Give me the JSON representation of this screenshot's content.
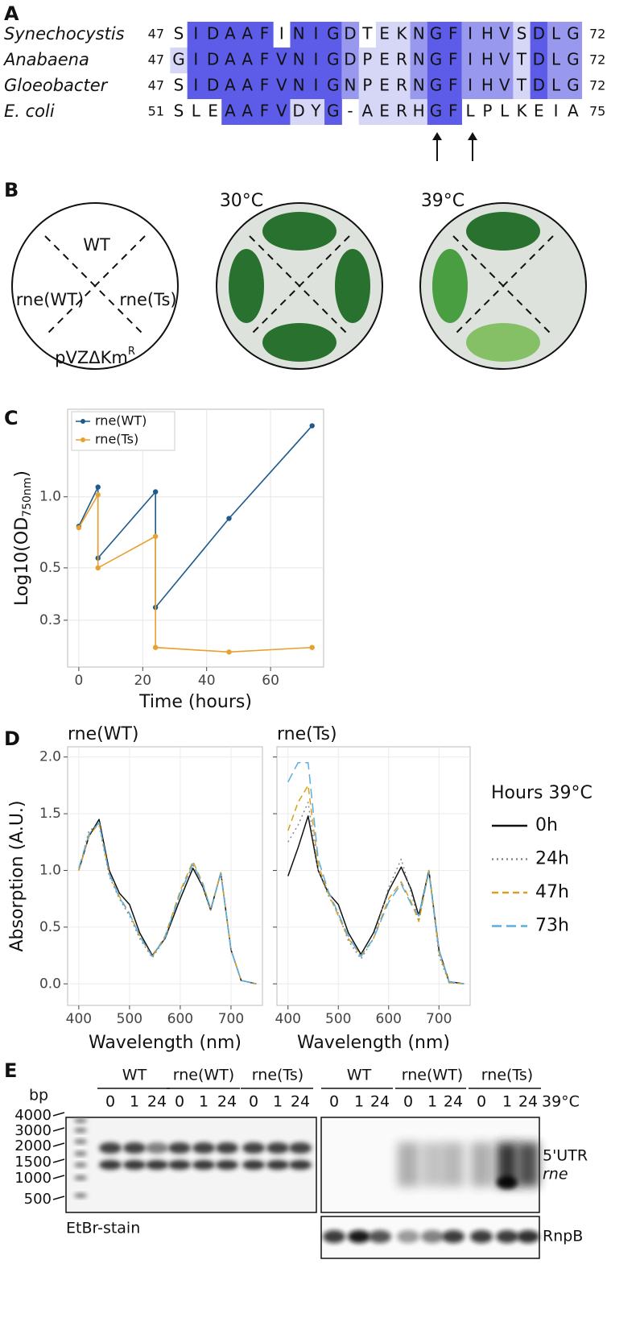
{
  "panel_labels": [
    "A",
    "B",
    "C",
    "D",
    "E"
  ],
  "alignment": {
    "rows": [
      {
        "name": "Synechocystis",
        "start": 47,
        "sequence": "SIDAAFINIGDTEKNGFIHVSDLG",
        "end": 72
      },
      {
        "name": "Anabaena",
        "start": 47,
        "sequence": "GIDAAFVNIGDPERNGFIHVTDLG",
        "end": 72
      },
      {
        "name": "Gloeobacter",
        "start": 47,
        "sequence": "SIDAAFVNIGNPERNGFIHVTDLG",
        "end": 72
      },
      {
        "name": "E. coli",
        "start": 51,
        "sequence": "SLEAAFVDYG-AERHGFLPLKEIA",
        "end": 75
      }
    ]
  },
  "plates": {
    "key": {
      "top": "WT",
      "left": "rne(WT)",
      "right": "rne(Ts)",
      "bottom": "pVZΔKm",
      "bottom_sup": "R"
    },
    "temperatures": [
      "30°C",
      "39°C"
    ]
  },
  "chart_data": [
    {
      "type": "line",
      "x_label": "Time (hours)",
      "y_label": "Log10(OD",
      "y_label_sub": "750nm",
      "y_label_end": ")",
      "log_y": true,
      "grid": true,
      "x": [
        0,
        6,
        6,
        24,
        24,
        47,
        73
      ],
      "series": [
        {
          "name": "rne(WT)",
          "color": "#1f5a8c",
          "values": [
            0.75,
            1.1,
            0.55,
            1.05,
            0.34,
            0.81,
            2.0
          ]
        },
        {
          "name": "rne(Ts)",
          "color": "#e8a030",
          "values": [
            0.74,
            1.02,
            0.5,
            0.68,
            0.23,
            0.22,
            0.23
          ]
        }
      ],
      "xlim": [
        -3.5,
        76.6
      ],
      "xticks": [
        0,
        20,
        40,
        60
      ],
      "ylim": [
        0.19,
        2.35
      ],
      "yticks": [
        0.3,
        0.5,
        {
          "value": 1,
          "label": "1.0"
        }
      ]
    },
    {
      "type": "line",
      "facets": [
        "rne(WT)",
        "rne(Ts)"
      ],
      "x_label": "Wavelength (nm)",
      "y_label": "Absorption (A.U.)",
      "legend_title": "Hours 39°C",
      "grid": true,
      "x": [
        400,
        420,
        440,
        460,
        480,
        500,
        520,
        545,
        570,
        600,
        625,
        645,
        660,
        680,
        700,
        720,
        750
      ],
      "series": [
        {
          "name": "0h",
          "color": "#111111",
          "dash": "solid",
          "values": [
            [
              1.0,
              1.3,
              1.45,
              1.0,
              0.8,
              0.7,
              0.45,
              0.25,
              0.4,
              0.75,
              1.02,
              0.85,
              0.65,
              0.98,
              0.3,
              0.03,
              0.0
            ],
            [
              0.95,
              1.2,
              1.48,
              1.0,
              0.8,
              0.7,
              0.45,
              0.26,
              0.45,
              0.82,
              1.03,
              0.83,
              0.6,
              1.0,
              0.3,
              0.02,
              0.0
            ]
          ]
        },
        {
          "name": "24h",
          "color": "#888888",
          "dash": "dotted",
          "values": [
            [
              1.0,
              1.35,
              1.4,
              0.95,
              0.75,
              0.6,
              0.4,
              0.23,
              0.4,
              0.8,
              1.05,
              0.86,
              0.65,
              0.98,
              0.3,
              0.03,
              0.0
            ],
            [
              1.25,
              1.4,
              1.6,
              1.0,
              0.78,
              0.62,
              0.38,
              0.22,
              0.4,
              0.85,
              1.1,
              0.8,
              0.55,
              1.0,
              0.25,
              0.01,
              0.0
            ]
          ]
        },
        {
          "name": "47h",
          "color": "#d9a01c",
          "dash": "dashed",
          "values": [
            [
              1.0,
              1.3,
              1.42,
              0.97,
              0.77,
              0.62,
              0.42,
              0.24,
              0.42,
              0.82,
              1.08,
              0.88,
              0.66,
              0.98,
              0.3,
              0.03,
              0.0
            ],
            [
              1.35,
              1.6,
              1.75,
              1.05,
              0.8,
              0.6,
              0.4,
              0.25,
              0.4,
              0.75,
              0.9,
              0.72,
              0.55,
              1.0,
              0.28,
              0.01,
              0.0
            ]
          ]
        },
        {
          "name": "73h",
          "color": "#5aaee0",
          "dash": "longdash",
          "values": [
            [
              1.02,
              1.32,
              1.42,
              0.97,
              0.76,
              0.62,
              0.42,
              0.24,
              0.41,
              0.8,
              1.06,
              0.87,
              0.66,
              0.97,
              0.3,
              0.03,
              0.0
            ],
            [
              1.78,
              1.95,
              1.95,
              1.1,
              0.82,
              0.62,
              0.42,
              0.24,
              0.4,
              0.72,
              0.88,
              0.7,
              0.6,
              0.98,
              0.3,
              0.02,
              0.0
            ]
          ]
        }
      ],
      "xlim": [
        378,
        762
      ],
      "xticks": [
        400,
        500,
        600,
        700
      ],
      "ylim": [
        -0.19,
        2.09
      ],
      "yticks": [
        {
          "value": 0,
          "label": "0.0"
        },
        0.5,
        {
          "value": 1,
          "label": "1.0"
        },
        1.5,
        {
          "value": 2,
          "label": "2.0"
        }
      ]
    }
  ],
  "blot": {
    "size_unit": "bp",
    "ladder": [
      4000,
      3000,
      2000,
      1500,
      1000,
      500
    ],
    "groups": [
      "WT",
      "rne(WT)",
      "rne(Ts)"
    ],
    "timepoints": [
      0,
      1,
      24
    ],
    "condition": "39°C",
    "probe_labels": [
      "5'UTR",
      "rne"
    ],
    "loading_control": "RnpB",
    "stain_label": "EtBr-stain"
  }
}
